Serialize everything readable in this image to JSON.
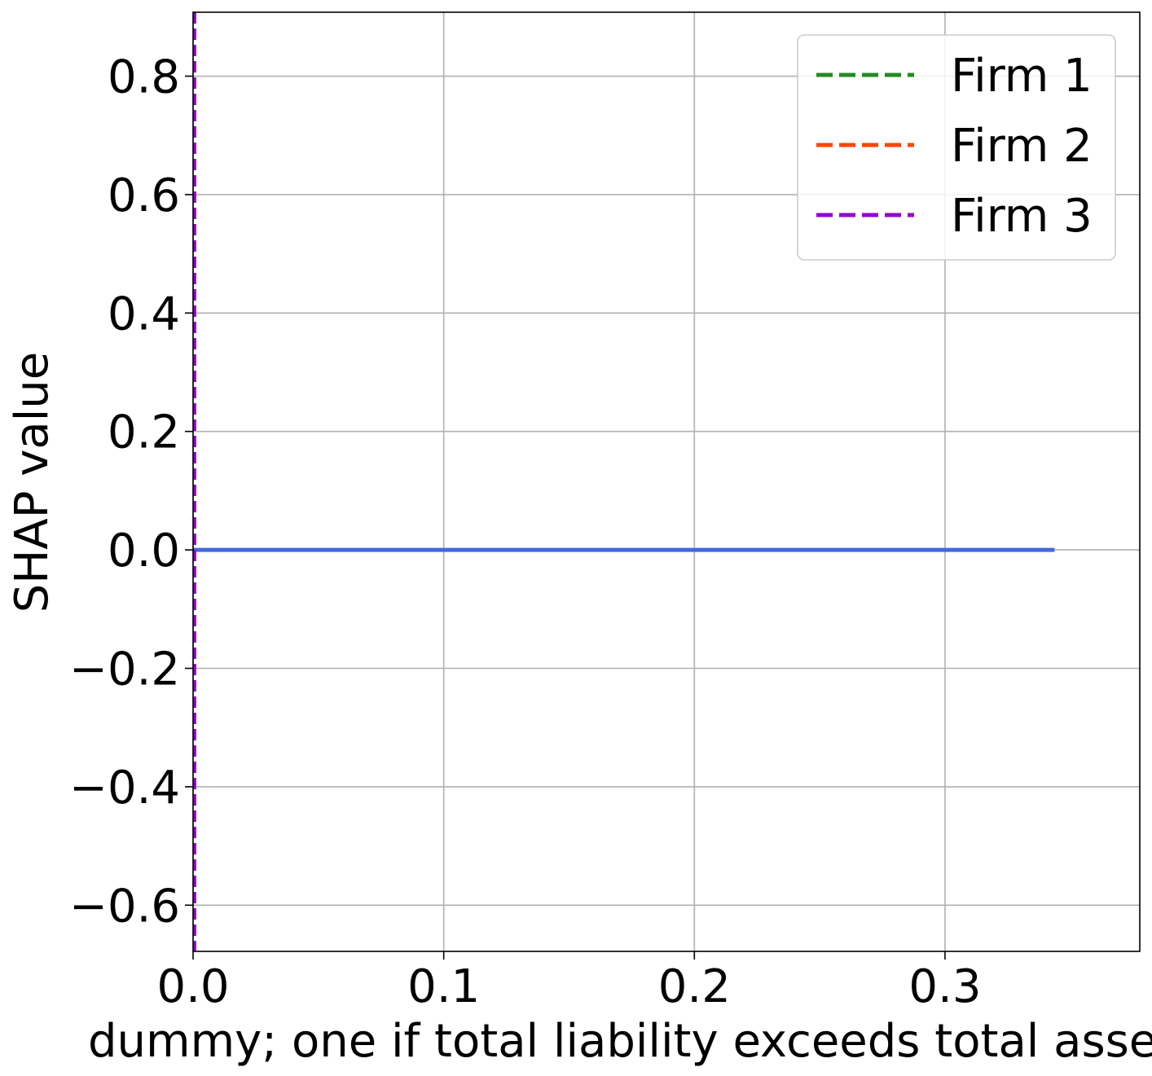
{
  "chart_data": {
    "type": "line",
    "title": "",
    "xlabel": "dummy; one if total liability exceeds total assets",
    "ylabel": "SHAP value",
    "xlim": [
      0.0,
      0.3777
    ],
    "ylim": [
      -0.678,
      0.908
    ],
    "x_ticks": [
      0.0,
      0.1,
      0.2,
      0.3
    ],
    "x_tick_labels": [
      "0.0",
      "0.1",
      "0.2",
      "0.3"
    ],
    "y_ticks": [
      -0.6,
      -0.4,
      -0.2,
      0.0,
      0.2,
      0.4,
      0.6,
      0.8
    ],
    "y_tick_labels": [
      "−0.6",
      "−0.4",
      "−0.2",
      "0.0",
      "0.2",
      "0.4",
      "0.6",
      "0.8"
    ],
    "grid": true,
    "legend_position": "top-right",
    "series": [
      {
        "x": [
          0.0,
          0.3437
        ],
        "y": [
          0.0,
          0.0
        ],
        "color": "#4169e1",
        "style": "solid"
      }
    ],
    "vlines": [
      {
        "name": "Firm 1",
        "x": 0.0,
        "color": "#228b22",
        "style": "dashed"
      },
      {
        "name": "Firm 2",
        "x": 0.0,
        "color": "#ff4500",
        "style": "dashed"
      },
      {
        "name": "Firm 3",
        "x": 0.0,
        "color": "#9400d3",
        "style": "dashed"
      }
    ]
  }
}
